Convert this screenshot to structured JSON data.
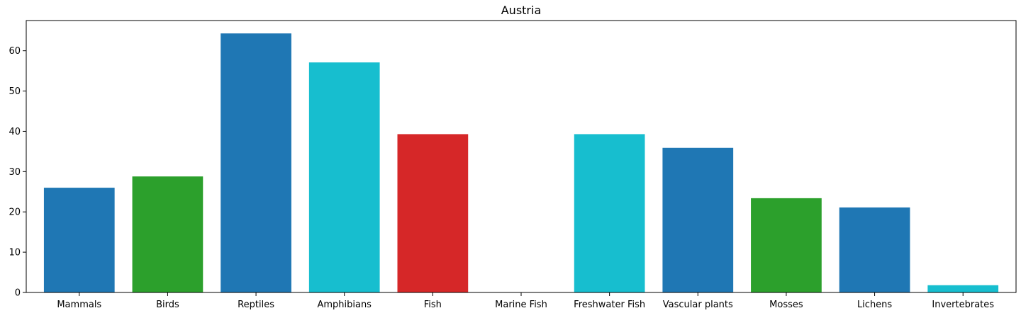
{
  "chart_data": {
    "type": "bar",
    "title": "Austria",
    "xlabel": "",
    "ylabel": "",
    "categories": [
      "Mammals",
      "Birds",
      "Reptiles",
      "Amphibians",
      "Fish",
      "Marine Fish",
      "Freshwater Fish",
      "Vascular plants",
      "Mosses",
      "Lichens",
      "Invertebrates"
    ],
    "values": [
      26.0,
      28.8,
      64.3,
      57.1,
      39.3,
      0,
      39.3,
      35.9,
      23.4,
      21.1,
      1.8
    ],
    "colors": [
      "#1f77b4",
      "#2ca02c",
      "#1f77b4",
      "#17becf",
      "#d62728",
      "#1f77b4",
      "#17becf",
      "#1f77b4",
      "#2ca02c",
      "#1f77b4",
      "#17becf"
    ],
    "ylim": [
      0,
      67.5
    ],
    "yticks": [
      0,
      10,
      20,
      30,
      40,
      50,
      60
    ],
    "grid": false,
    "legend": "none"
  }
}
